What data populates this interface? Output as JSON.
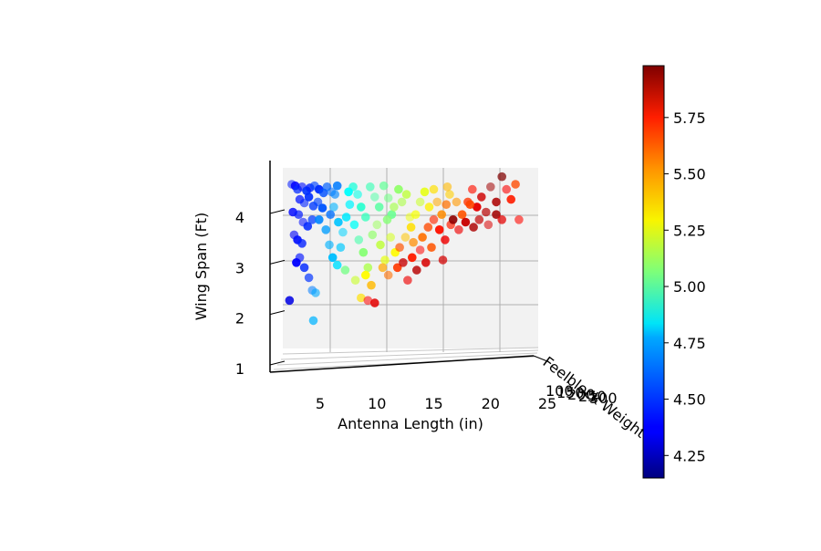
{
  "chart_data": {
    "type": "scatter",
    "projection": "3d",
    "xlabel": "Antenna Length (in)",
    "ylabel": "Wing Span (Ft)",
    "zlabel": "Feelblock Weight",
    "x_ticks": [
      "5",
      "10",
      "15",
      "20",
      "25"
    ],
    "y_ticks": [
      "1",
      "2",
      "3",
      "4"
    ],
    "z_ticks": [
      "100",
      "150",
      "200",
      "250",
      "300"
    ],
    "xlim": [
      0.5,
      24
    ],
    "ylim": [
      1.0,
      5.0
    ],
    "colorbar": {
      "colormap": "jet",
      "range": [
        4.15,
        5.98
      ],
      "ticks": [
        "4.25",
        "4.50",
        "4.75",
        "5.00",
        "5.25",
        "5.50",
        "5.75"
      ]
    },
    "points": [
      [
        2.5,
        4.65,
        4.42
      ],
      [
        2.8,
        4.62,
        4.38
      ],
      [
        3.0,
        4.55,
        4.45
      ],
      [
        3.4,
        4.6,
        4.4
      ],
      [
        3.8,
        4.52,
        4.47
      ],
      [
        4.1,
        4.58,
        4.43
      ],
      [
        4.5,
        4.62,
        4.5
      ],
      [
        4.9,
        4.55,
        4.46
      ],
      [
        5.3,
        4.48,
        4.52
      ],
      [
        5.6,
        4.6,
        4.55
      ],
      [
        6.0,
        4.5,
        4.58
      ],
      [
        6.5,
        4.62,
        4.6
      ],
      [
        3.2,
        4.35,
        4.41
      ],
      [
        3.6,
        4.28,
        4.44
      ],
      [
        4.0,
        4.4,
        4.46
      ],
      [
        4.4,
        4.22,
        4.48
      ],
      [
        4.8,
        4.3,
        4.5
      ],
      [
        5.2,
        4.18,
        4.53
      ],
      [
        2.6,
        4.1,
        4.39
      ],
      [
        3.1,
        4.05,
        4.42
      ],
      [
        3.5,
        3.9,
        4.4
      ],
      [
        3.9,
        3.82,
        4.45
      ],
      [
        4.3,
        3.95,
        4.48
      ],
      [
        2.7,
        3.65,
        4.36
      ],
      [
        3.0,
        3.55,
        4.4
      ],
      [
        3.4,
        3.48,
        4.43
      ],
      [
        3.2,
        3.2,
        4.41
      ],
      [
        2.9,
        3.1,
        4.38
      ],
      [
        3.6,
        3.0,
        4.45
      ],
      [
        4.0,
        2.8,
        4.47
      ],
      [
        4.3,
        2.55,
        4.6
      ],
      [
        2.3,
        2.35,
        4.33
      ],
      [
        4.4,
        1.95,
        4.7
      ],
      [
        4.6,
        2.5,
        4.68
      ],
      [
        4.9,
        3.95,
        4.62
      ],
      [
        5.5,
        3.75,
        4.66
      ],
      [
        5.8,
        3.45,
        4.7
      ],
      [
        6.1,
        3.2,
        4.72
      ],
      [
        6.5,
        3.05,
        4.78
      ],
      [
        6.8,
        3.4,
        4.74
      ],
      [
        7.0,
        3.7,
        4.76
      ],
      [
        7.3,
        4.0,
        4.8
      ],
      [
        7.6,
        4.25,
        4.82
      ],
      [
        6.2,
        4.2,
        4.7
      ],
      [
        6.6,
        3.9,
        4.73
      ],
      [
        7.9,
        4.6,
        4.9
      ],
      [
        8.3,
        4.45,
        4.88
      ],
      [
        8.6,
        4.2,
        4.92
      ],
      [
        9.0,
        4.0,
        4.95
      ],
      [
        9.4,
        4.6,
        4.96
      ],
      [
        9.8,
        4.4,
        4.99
      ],
      [
        10.2,
        4.2,
        5.0
      ],
      [
        10.6,
        4.62,
        5.02
      ],
      [
        11.0,
        4.38,
        5.05
      ],
      [
        11.3,
        4.05,
        5.03
      ],
      [
        8.0,
        3.85,
        4.85
      ],
      [
        8.4,
        3.55,
        4.98
      ],
      [
        8.8,
        3.3,
        5.08
      ],
      [
        9.2,
        3.0,
        5.15
      ],
      [
        9.6,
        3.65,
        5.1
      ],
      [
        10.0,
        3.85,
        5.12
      ],
      [
        10.3,
        3.45,
        5.18
      ],
      [
        10.7,
        3.15,
        5.25
      ],
      [
        11.2,
        3.6,
        5.22
      ],
      [
        11.6,
        3.3,
        5.3
      ],
      [
        7.2,
        2.95,
        5.05
      ],
      [
        8.1,
        2.75,
        5.2
      ],
      [
        9.0,
        2.85,
        5.3
      ],
      [
        9.5,
        2.65,
        5.42
      ],
      [
        8.6,
        2.4,
        5.35
      ],
      [
        9.2,
        2.35,
        5.75
      ],
      [
        9.8,
        2.3,
        5.8
      ],
      [
        10.5,
        3.0,
        5.45
      ],
      [
        11.0,
        2.85,
        5.55
      ],
      [
        11.8,
        3.0,
        5.65
      ],
      [
        12.3,
        3.1,
        5.85
      ],
      [
        12.7,
        2.75,
        5.78
      ],
      [
        13.1,
        3.2,
        5.7
      ],
      [
        13.5,
        2.95,
        5.88
      ],
      [
        12.0,
        3.4,
        5.6
      ],
      [
        12.5,
        3.6,
        5.4
      ],
      [
        13.0,
        3.8,
        5.35
      ],
      [
        13.4,
        4.05,
        5.28
      ],
      [
        13.8,
        4.3,
        5.2
      ],
      [
        14.2,
        4.5,
        5.25
      ],
      [
        14.6,
        4.2,
        5.32
      ],
      [
        12.2,
        4.3,
        5.15
      ],
      [
        11.9,
        4.55,
        5.1
      ],
      [
        12.6,
        4.45,
        5.18
      ],
      [
        15.0,
        4.55,
        5.35
      ],
      [
        15.3,
        4.3,
        5.45
      ],
      [
        15.7,
        4.05,
        5.5
      ],
      [
        16.1,
        4.25,
        5.55
      ],
      [
        16.4,
        4.45,
        5.38
      ],
      [
        14.0,
        3.6,
        5.55
      ],
      [
        14.5,
        3.8,
        5.62
      ],
      [
        15.0,
        3.95,
        5.68
      ],
      [
        15.5,
        3.75,
        5.72
      ],
      [
        16.0,
        3.55,
        5.78
      ],
      [
        16.5,
        3.85,
        5.7
      ],
      [
        13.8,
        3.35,
        5.75
      ],
      [
        14.3,
        3.1,
        5.82
      ],
      [
        13.2,
        3.5,
        5.5
      ],
      [
        17.0,
        4.3,
        5.48
      ],
      [
        17.5,
        4.05,
        5.6
      ],
      [
        18.0,
        4.3,
        5.66
      ],
      [
        18.4,
        4.55,
        5.72
      ],
      [
        18.8,
        4.2,
        5.8
      ],
      [
        19.2,
        4.4,
        5.84
      ],
      [
        19.6,
        4.1,
        5.88
      ],
      [
        20.0,
        4.6,
        5.92
      ],
      [
        20.5,
        4.3,
        5.9
      ],
      [
        21.0,
        4.8,
        5.98
      ],
      [
        21.4,
        4.55,
        5.76
      ],
      [
        21.8,
        4.35,
        5.7
      ],
      [
        22.2,
        4.65,
        5.62
      ],
      [
        17.2,
        3.75,
        5.78
      ],
      [
        17.8,
        3.9,
        5.85
      ],
      [
        18.5,
        3.8,
        5.9
      ],
      [
        19.0,
        3.95,
        5.86
      ],
      [
        19.8,
        3.85,
        5.82
      ],
      [
        20.5,
        4.05,
        5.92
      ],
      [
        21.0,
        3.95,
        5.8
      ],
      [
        22.5,
        3.95,
        5.74
      ],
      [
        16.7,
        3.95,
        5.95
      ],
      [
        5.9,
        4.05,
        4.58
      ],
      [
        6.3,
        4.45,
        4.62
      ],
      [
        7.5,
        4.5,
        4.84
      ],
      [
        10.9,
        3.95,
        5.08
      ],
      [
        11.5,
        4.2,
        5.14
      ],
      [
        12.9,
        4.0,
        5.26
      ],
      [
        14.8,
        3.4,
        5.6
      ],
      [
        15.8,
        3.15,
        5.83
      ],
      [
        16.2,
        4.6,
        5.42
      ],
      [
        18.2,
        4.25,
        5.63
      ]
    ]
  }
}
